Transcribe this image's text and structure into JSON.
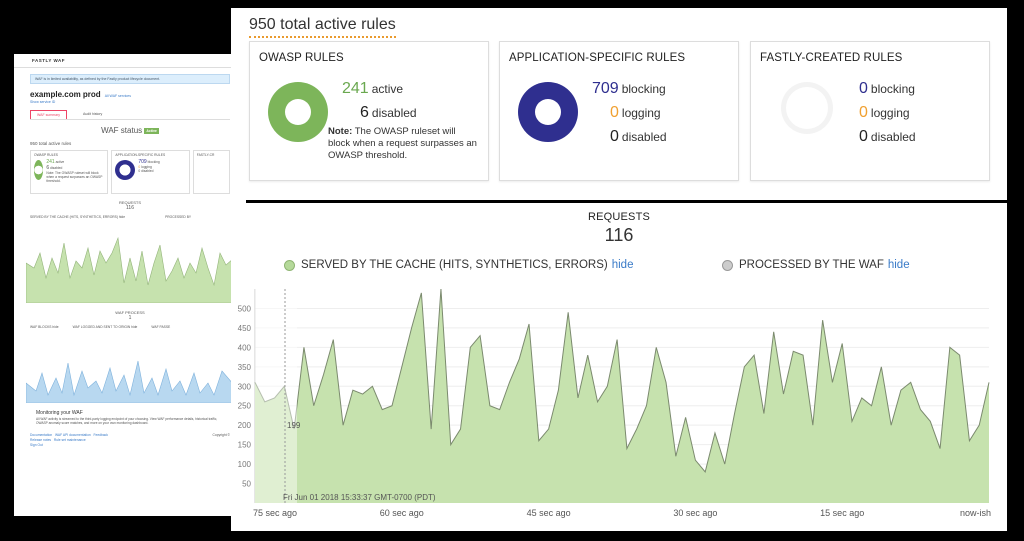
{
  "background": {
    "header": "FASTLY WAF",
    "info": "WAF is in limited availability, as defined by the Fastly product lifecycle document.",
    "service_name": "example.com prod",
    "service_link": "All WAF services",
    "service_id": "Show service ID",
    "tabs": [
      "WAF summary",
      "Audit history"
    ],
    "status_title": "WAF status",
    "status_badge": "Active",
    "total": "950 total active rules",
    "cards": [
      {
        "title": "OWASP RULES",
        "big": "241",
        "big_label": "active",
        "second": "6",
        "second_label": "disabled",
        "note": "Note: The OWASP ruleset will block when a request surpasses an OWASP threshold."
      },
      {
        "title": "APPLICATION-SPECIFIC RULES",
        "big": "709",
        "big_label": "blocking",
        "second": "0",
        "second_label": "logging",
        "third": "0",
        "third_label": "disabled"
      },
      {
        "title": "FASTLY-CR"
      }
    ],
    "requests_label": "REQUESTS",
    "requests_value": "116",
    "legend1": "SERVED BY THE CACHE (HITS, SYNTHETICS, ERRORS) hide",
    "legend2": "PROCESSED BY",
    "waf_process_label": "WAF PROCESS",
    "waf_process_value": "1",
    "legend3": "WAF BLOCKS hide",
    "legend4": "WAF LOGGED AND SENT TO ORIGIN hide",
    "legend5": "WAF PASSE",
    "monitor_title": "Monitoring your WAF",
    "monitor_text": "All WAF activity is streamed to the third-party logging endpoint of your choosing. View WAF performance details, historical traffic, OWASP anomaly score matches, and more on your own monitoring dashboard.",
    "footer": [
      "Documentation",
      "WAF API documentation",
      "Feedback",
      "Release notes",
      "Rule set maintenance",
      "Sign Out"
    ],
    "copyright": "Copyright ©"
  },
  "rules": {
    "title": "950 total active rules",
    "owasp": {
      "title": "OWASP RULES",
      "active": "241",
      "active_label": "active",
      "disabled": "6",
      "disabled_label": "disabled",
      "note_bold": "Note:",
      "note": " The OWASP ruleset will block when a request surpasses an OWASP threshold."
    },
    "app": {
      "title": "APPLICATION-SPECIFIC RULES",
      "blocking": "709",
      "blocking_label": "blocking",
      "logging": "0",
      "logging_label": "logging",
      "disabled": "0",
      "disabled_label": "disabled"
    },
    "fastly": {
      "title": "FASTLY-CREATED RULES",
      "blocking": "0",
      "blocking_label": "blocking",
      "logging": "0",
      "logging_label": "logging",
      "disabled": "0",
      "disabled_label": "disabled"
    }
  },
  "colors": {
    "green": "#7db55a",
    "blue": "#2f2f8f",
    "orange": "#f0a030",
    "link": "#3a7bc8"
  },
  "requests": {
    "title": "REQUESTS",
    "value": "116",
    "legend_cache": "SERVED BY THE CACHE (HITS, SYNTHETICS, ERRORS)",
    "legend_waf": "PROCESSED BY THE WAF",
    "hide": "hide",
    "tooltip_value": "199",
    "tooltip_time": "Fri Jun 01 2018 15:33:37 GMT-0700 (PDT)"
  },
  "chart_data": {
    "type": "area",
    "ylim": [
      0,
      550
    ],
    "yticks": [
      50,
      100,
      150,
      200,
      250,
      300,
      350,
      400,
      450,
      500
    ],
    "xtick_labels": [
      "75 sec ago",
      "60 sec ago",
      "45 sec ago",
      "30 sec ago",
      "15 sec ago",
      "now-ish"
    ],
    "x_seconds_ago": [
      75,
      74,
      73,
      72,
      71,
      70,
      69,
      68,
      67,
      66,
      65,
      64,
      63,
      62,
      61,
      60,
      59,
      58,
      57,
      56,
      55,
      54,
      53,
      52,
      51,
      50,
      49,
      48,
      47,
      46,
      45,
      44,
      43,
      42,
      41,
      40,
      39,
      38,
      37,
      36,
      35,
      34,
      33,
      32,
      31,
      30,
      29,
      28,
      27,
      26,
      25,
      24,
      23,
      22,
      21,
      20,
      19,
      18,
      17,
      16,
      15,
      14,
      13,
      12,
      11,
      10,
      9,
      8,
      7,
      6,
      5,
      4,
      3,
      2,
      1,
      0
    ],
    "series": [
      {
        "name": "SERVED BY THE CACHE (HITS, SYNTHETICS, ERRORS)",
        "values": [
          310,
          260,
          270,
          300,
          190,
          400,
          250,
          330,
          420,
          200,
          290,
          280,
          300,
          240,
          250,
          350,
          450,
          540,
          190,
          550,
          150,
          190,
          400,
          430,
          250,
          240,
          310,
          370,
          460,
          160,
          190,
          290,
          490,
          270,
          380,
          260,
          300,
          420,
          140,
          190,
          250,
          400,
          310,
          120,
          220,
          110,
          80,
          180,
          100,
          230,
          350,
          380,
          230,
          440,
          280,
          390,
          380,
          200,
          470,
          310,
          410,
          210,
          270,
          250,
          350,
          200,
          290,
          310,
          240,
          210,
          140,
          400,
          380,
          160,
          200,
          310
        ]
      }
    ]
  }
}
